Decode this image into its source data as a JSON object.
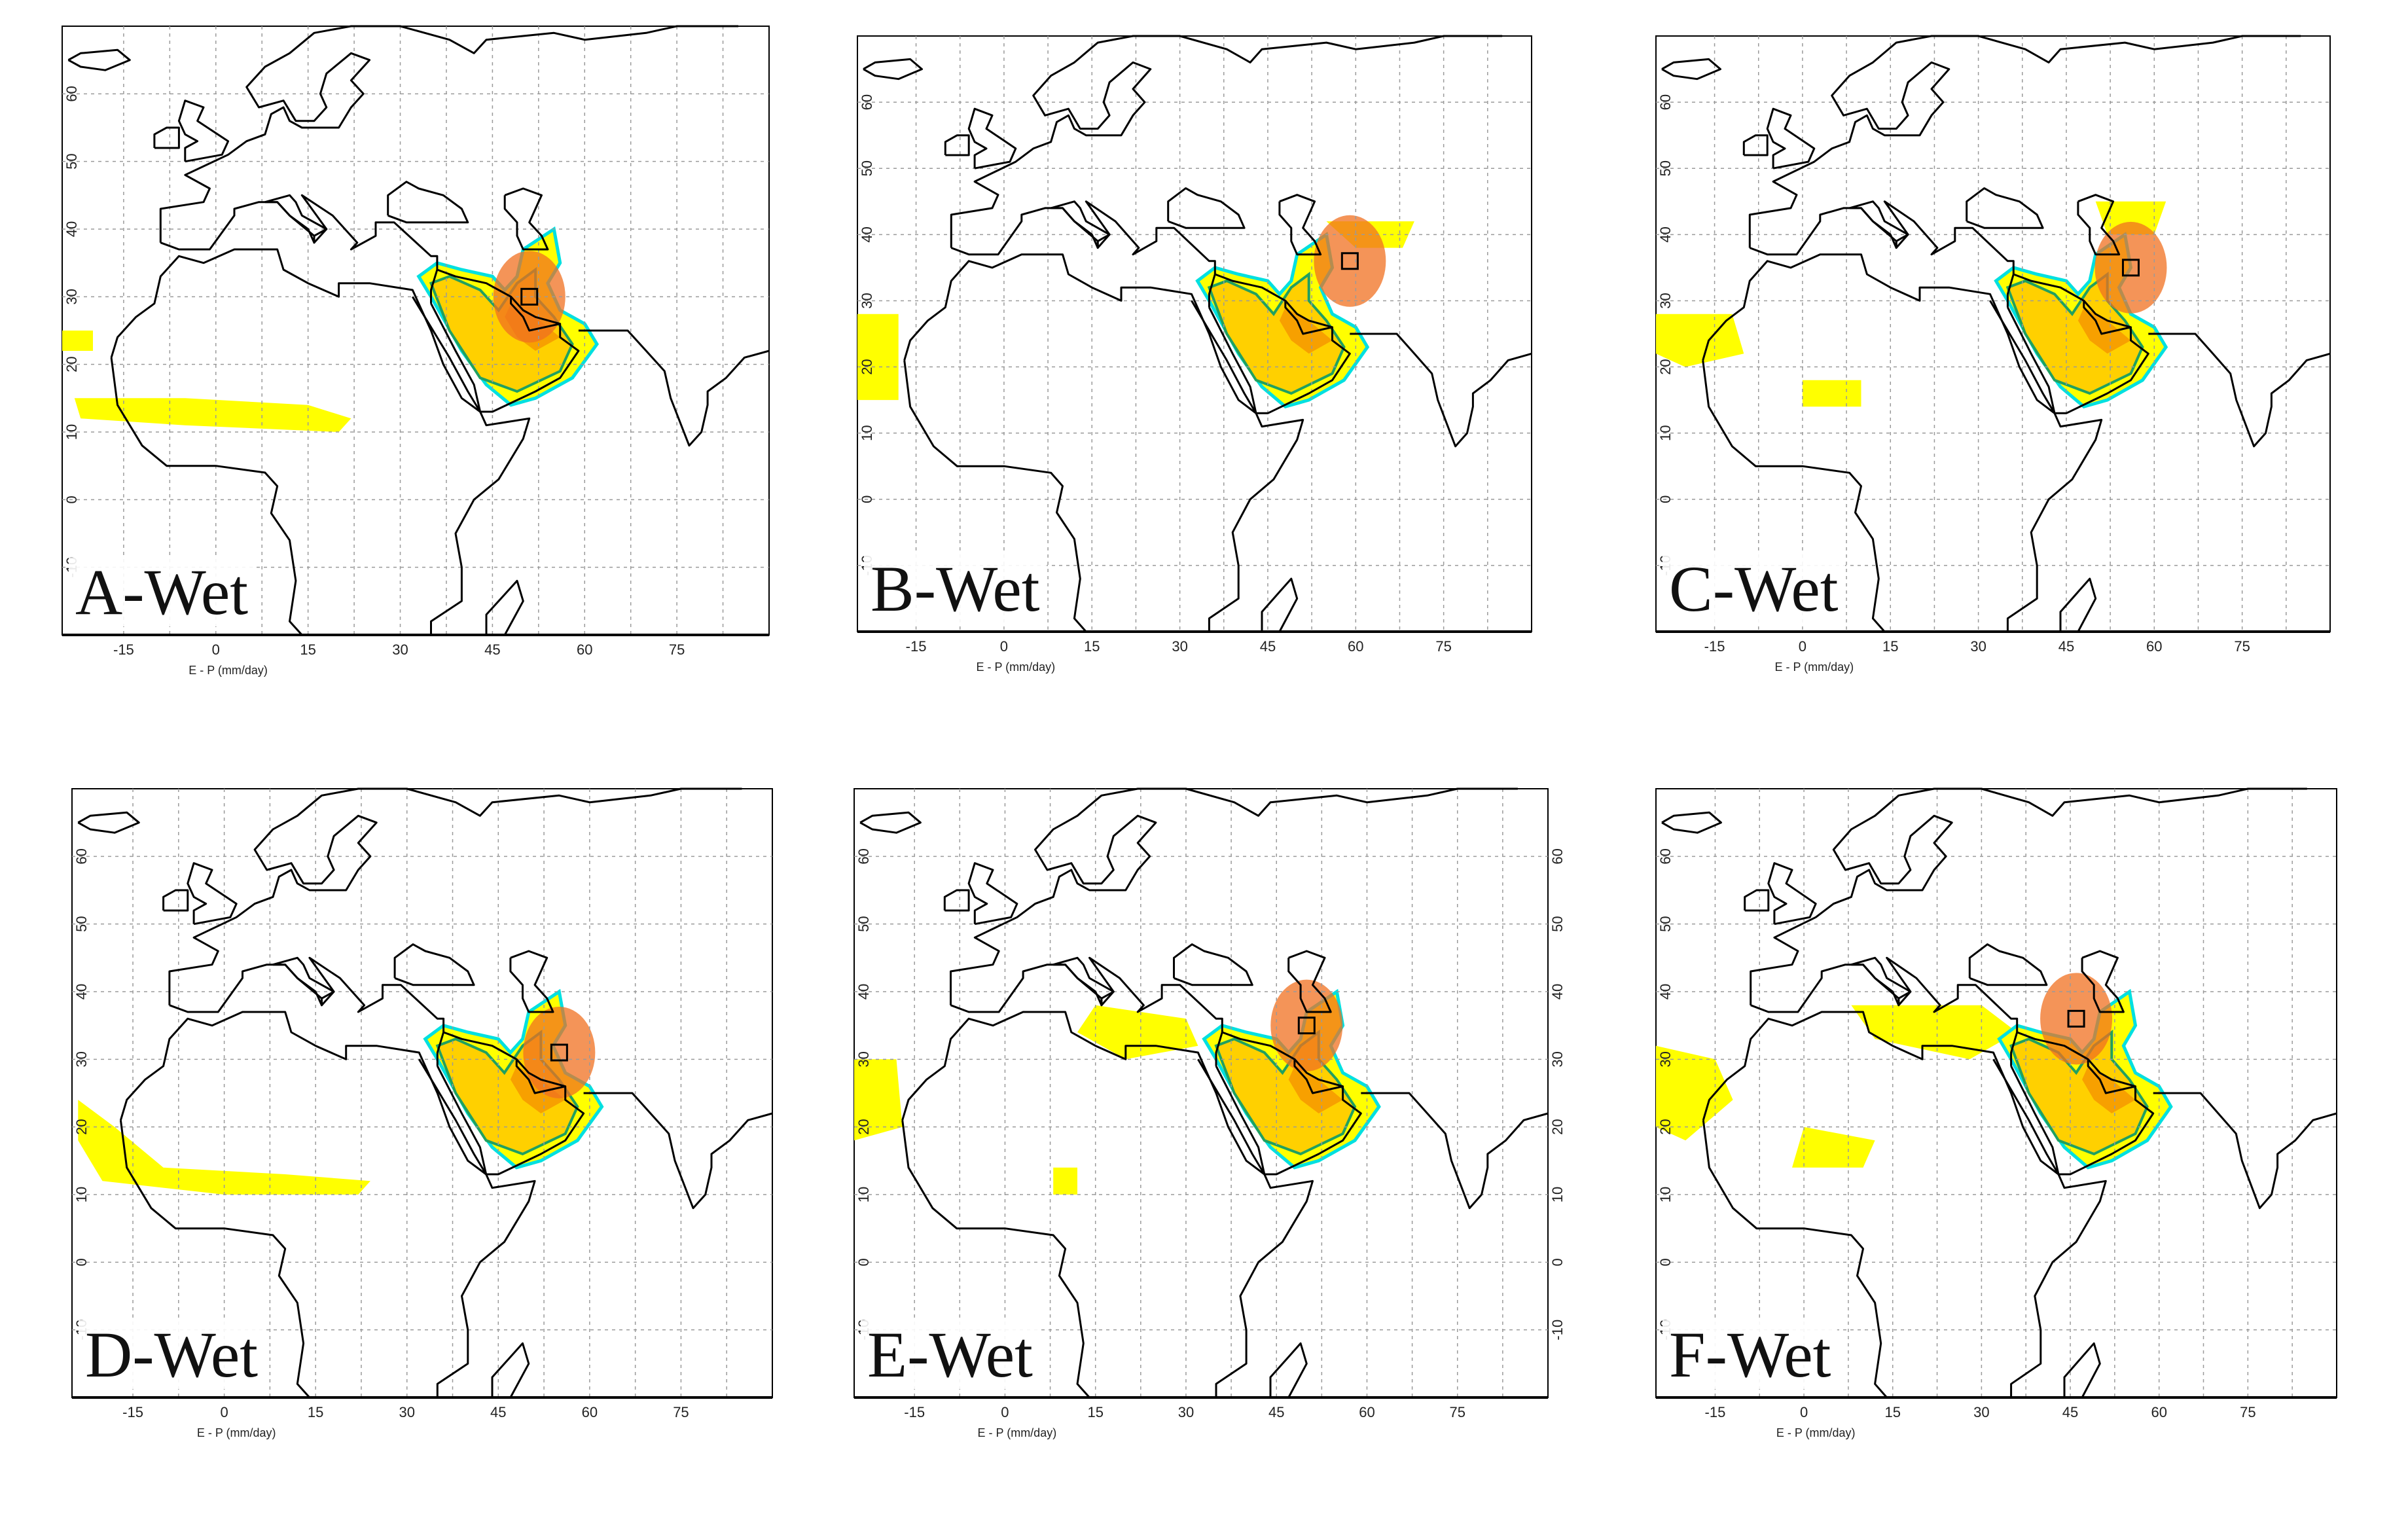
{
  "x_axis_label": "E - P (mm/day)",
  "x_ticks": [
    "-15",
    "0",
    "15",
    "30",
    "45",
    "60",
    "75"
  ],
  "y_ticks": [
    "-10",
    "0",
    "10",
    "20",
    "30",
    "40",
    "50",
    "60"
  ],
  "colors": {
    "contour_cyan": "#00e0e0",
    "contour_green": "#20a060",
    "fill_yellow": "#ffff00",
    "fill_yellow_orange": "#ffd000",
    "fill_orange": "#f7a000",
    "fill_dark_orange": "#f07020",
    "coastline": "#000000",
    "grid": "#9a9a9a"
  },
  "panels": [
    {
      "label": "A-Wet",
      "y_ticks_side": "left",
      "target_box": {
        "lon": 51,
        "lat": 30
      }
    },
    {
      "label": "B-Wet",
      "y_ticks_side": "left",
      "target_box": {
        "lon": 59,
        "lat": 36
      }
    },
    {
      "label": "C-Wet",
      "y_ticks_side": "left",
      "target_box": {
        "lon": 56,
        "lat": 35
      }
    },
    {
      "label": "D-Wet",
      "y_ticks_side": "left",
      "target_box": {
        "lon": 55,
        "lat": 31
      }
    },
    {
      "label": "E-Wet",
      "y_ticks_side": "both",
      "target_box": {
        "lon": 50,
        "lat": 35
      }
    },
    {
      "label": "F-Wet",
      "y_ticks_side": "left",
      "target_box": {
        "lon": 46,
        "lat": 36
      }
    }
  ]
}
